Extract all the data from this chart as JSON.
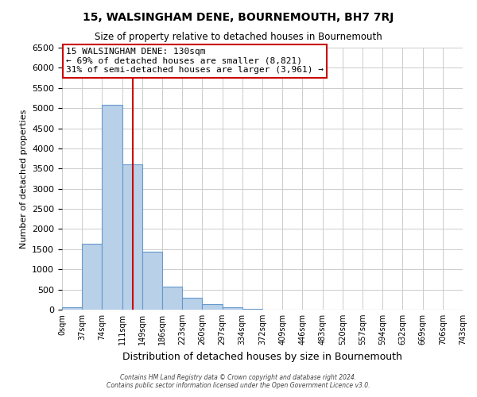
{
  "title": "15, WALSINGHAM DENE, BOURNEMOUTH, BH7 7RJ",
  "subtitle": "Size of property relative to detached houses in Bournemouth",
  "xlabel": "Distribution of detached houses by size in Bournemouth",
  "ylabel": "Number of detached properties",
  "bin_edges": [
    0,
    37,
    74,
    111,
    148,
    185,
    222,
    259,
    296,
    333,
    370,
    407,
    444,
    481,
    518,
    555,
    592,
    629,
    666,
    703,
    740
  ],
  "bin_labels": [
    "0sqm",
    "37sqm",
    "74sqm",
    "111sqm",
    "149sqm",
    "186sqm",
    "223sqm",
    "260sqm",
    "297sqm",
    "334sqm",
    "372sqm",
    "409sqm",
    "446sqm",
    "483sqm",
    "520sqm",
    "557sqm",
    "594sqm",
    "632sqm",
    "669sqm",
    "706sqm",
    "743sqm"
  ],
  "counts": [
    55,
    1640,
    5080,
    3600,
    1430,
    580,
    295,
    140,
    65,
    20,
    5,
    0,
    0,
    0,
    0,
    0,
    0,
    0,
    0,
    0
  ],
  "bar_color": "#b8d0e8",
  "bar_edge_color": "#6699cc",
  "property_line_x": 130,
  "property_line_color": "#cc0000",
  "annotation_line1": "15 WALSINGHAM DENE: 130sqm",
  "annotation_line2": "← 69% of detached houses are smaller (8,821)",
  "annotation_line3": "31% of semi-detached houses are larger (3,961) →",
  "annotation_box_color": "#cc0000",
  "ylim": [
    0,
    6500
  ],
  "yticks": [
    0,
    500,
    1000,
    1500,
    2000,
    2500,
    3000,
    3500,
    4000,
    4500,
    5000,
    5500,
    6000,
    6500
  ],
  "grid_color": "#cccccc",
  "background_color": "#ffffff",
  "footer_line1": "Contains HM Land Registry data © Crown copyright and database right 2024.",
  "footer_line2": "Contains public sector information licensed under the Open Government Licence v3.0."
}
